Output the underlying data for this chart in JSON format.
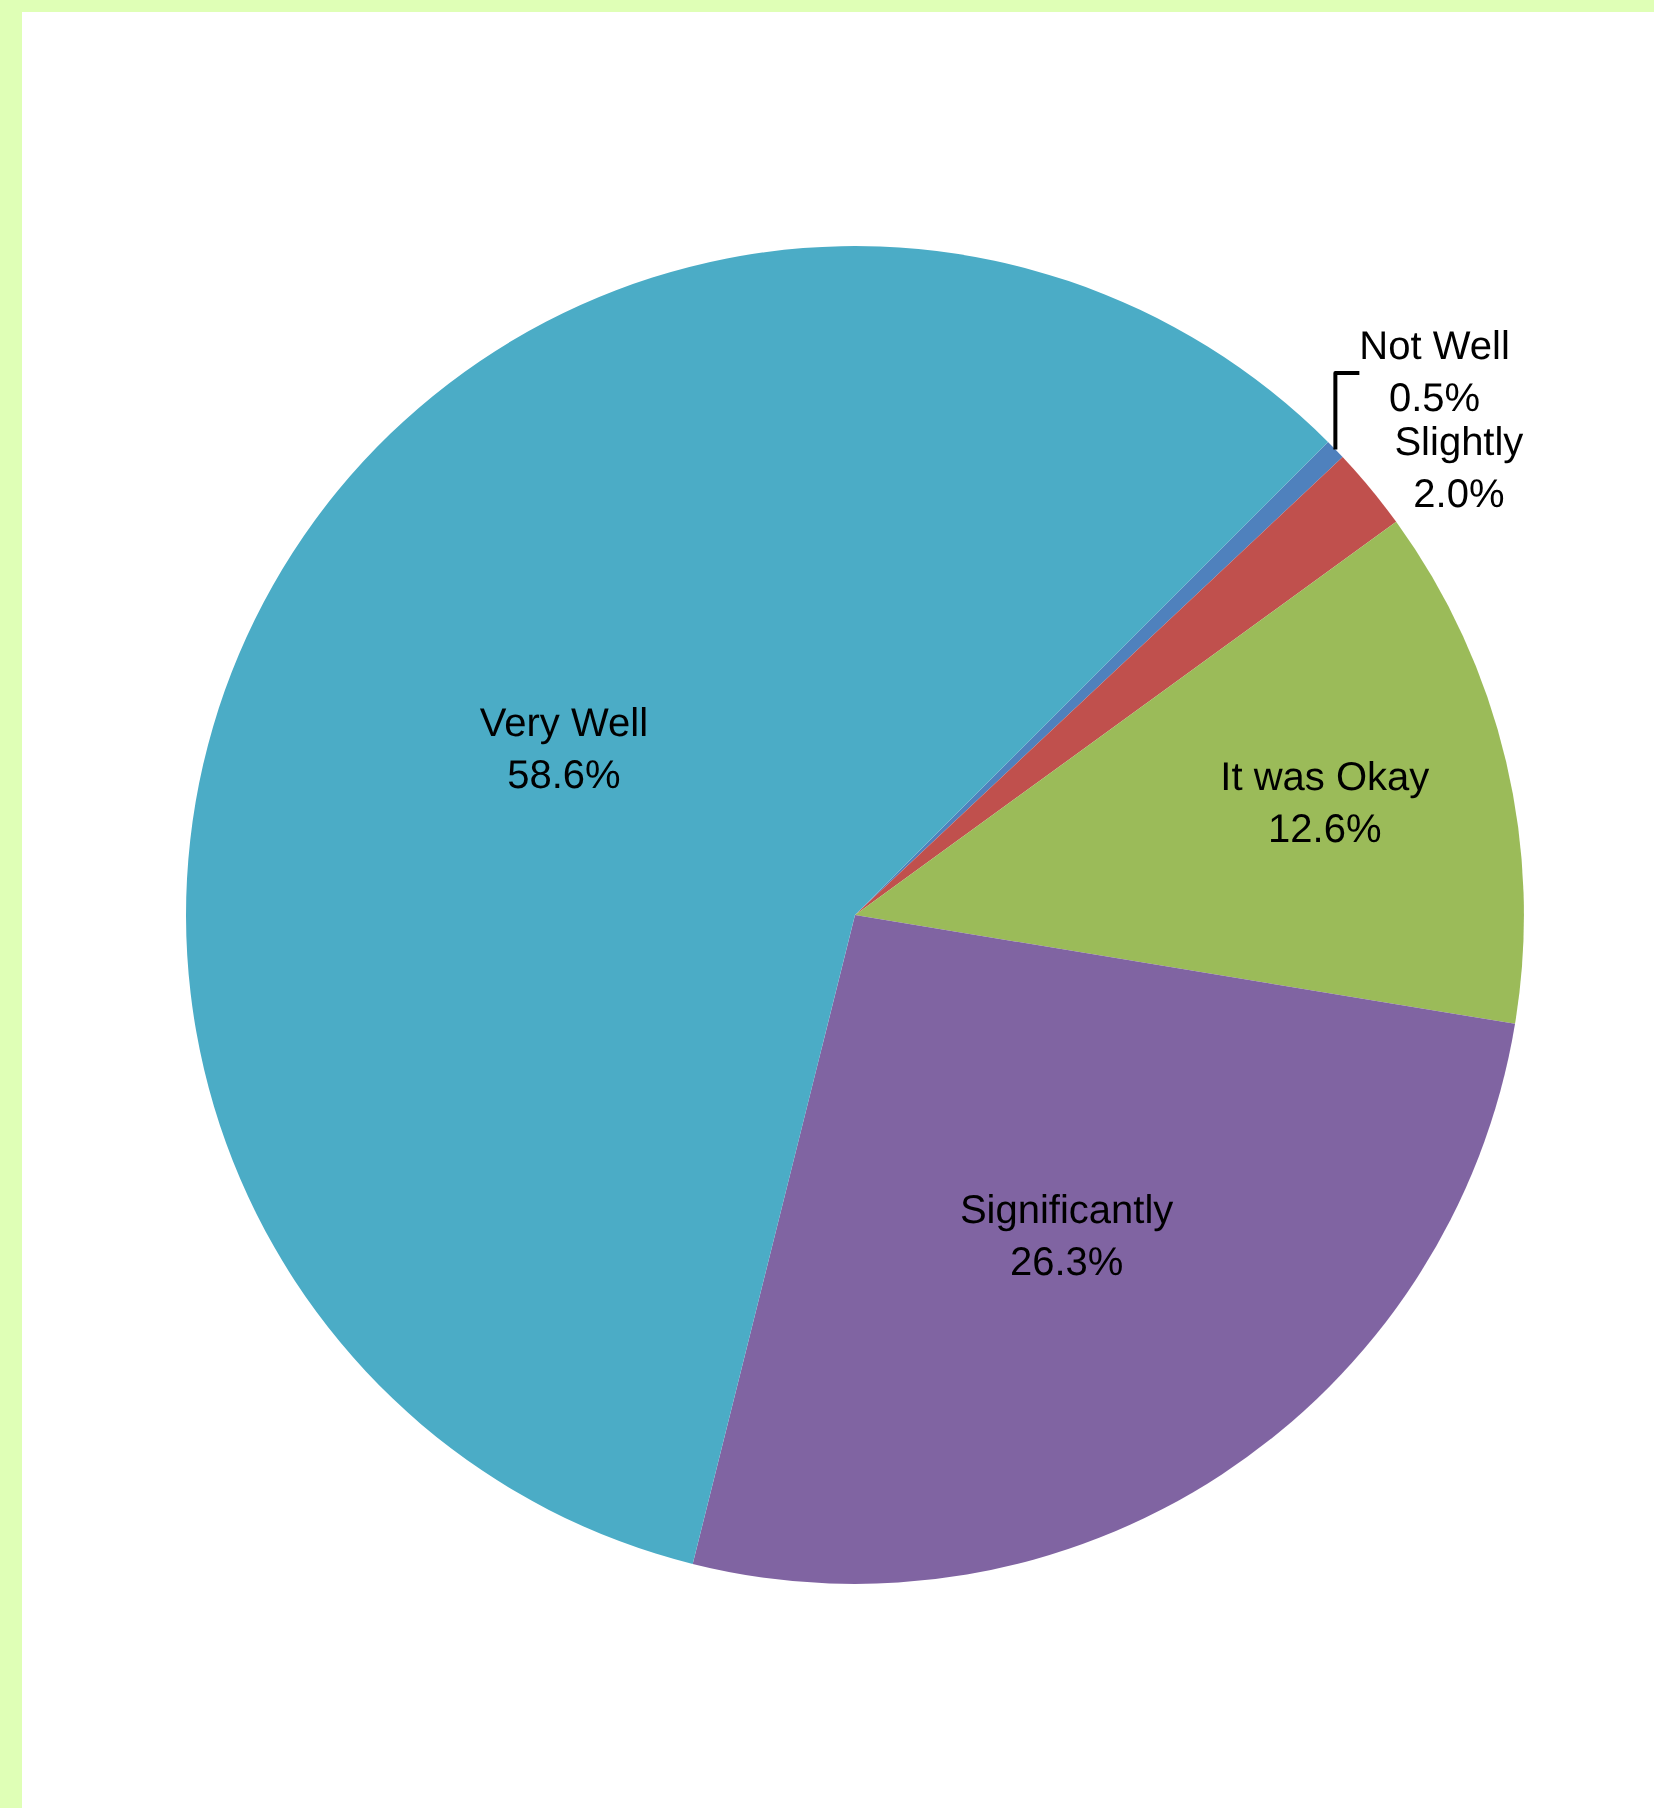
{
  "chart_data": {
    "type": "pie",
    "categories": [
      "Not Well",
      "Slightly",
      "It was Okay",
      "Significantly",
      "Very Well"
    ],
    "values": [
      0.5,
      2.0,
      12.6,
      26.3,
      58.6
    ],
    "colors": [
      "#4f81bd",
      "#c0504d",
      "#9bbb59",
      "#8064a2",
      "#4bacc6"
    ],
    "value_labels": [
      "0.5%",
      "2.0%",
      "12.6%",
      "26.3%",
      "58.6%"
    ]
  }
}
